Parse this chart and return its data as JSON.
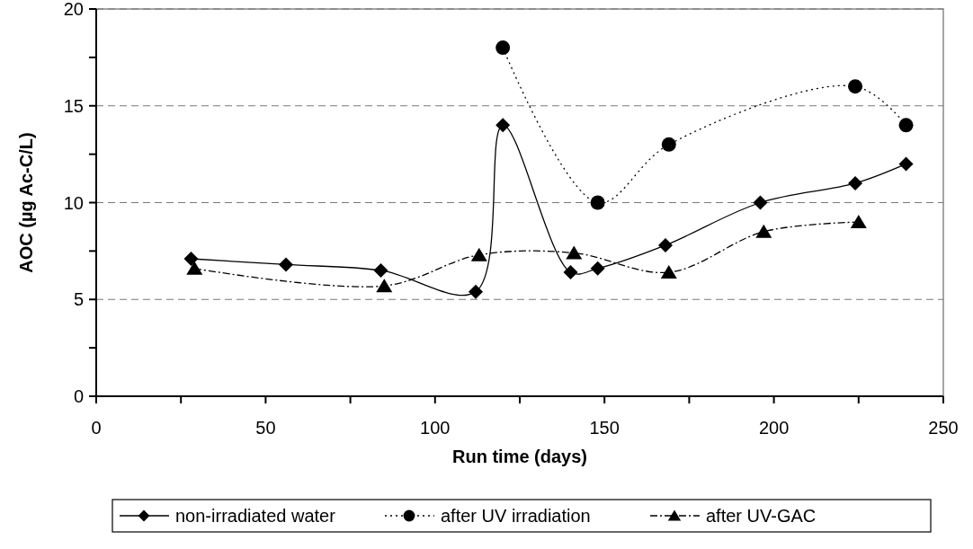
{
  "chart_data": {
    "type": "line",
    "xlabel": "Run time (days)",
    "ylabel": "AOC  (µg Ac-C/L)",
    "xlim": [
      0,
      250
    ],
    "xticks": [
      0,
      {
        "value": 25,
        "label": null
      },
      50,
      {
        "value": 75,
        "label": null
      },
      100,
      {
        "value": 125,
        "label": null
      },
      150,
      {
        "value": 175,
        "label": null
      },
      200,
      {
        "value": 225,
        "label": null
      },
      250
    ],
    "ylim": [
      0,
      20
    ],
    "yticks": [
      0,
      {
        "value": 2.5,
        "label": null
      },
      5,
      {
        "value": 7.5,
        "label": null
      },
      10,
      {
        "value": 12.5,
        "label": null
      },
      15,
      {
        "value": 17.5,
        "label": null
      },
      20
    ],
    "grid": "y",
    "legend": "bottom",
    "series": [
      {
        "name": "non-irradiated water",
        "color": "#000000",
        "marker": "diamond",
        "line_style": "solid",
        "x": [
          28,
          56,
          84,
          112,
          120,
          140,
          148,
          168,
          196,
          224,
          239
        ],
        "values": [
          7.1,
          6.8,
          6.5,
          5.4,
          14,
          6.4,
          6.6,
          7.8,
          10,
          11,
          12
        ]
      },
      {
        "name": "after UV irradiation",
        "color": "#000000",
        "marker": "circle",
        "line_style": "dotted",
        "x": [
          120,
          148,
          169,
          224,
          239
        ],
        "values": [
          18,
          10,
          13,
          16,
          14
        ]
      },
      {
        "name": "after UV-GAC",
        "color": "#000000",
        "marker": "triangle",
        "line_style": "dashdot",
        "x": [
          29,
          85,
          113,
          141,
          169,
          197,
          225
        ],
        "values": [
          6.6,
          5.7,
          7.3,
          7.4,
          6.4,
          8.5,
          9
        ]
      }
    ]
  }
}
